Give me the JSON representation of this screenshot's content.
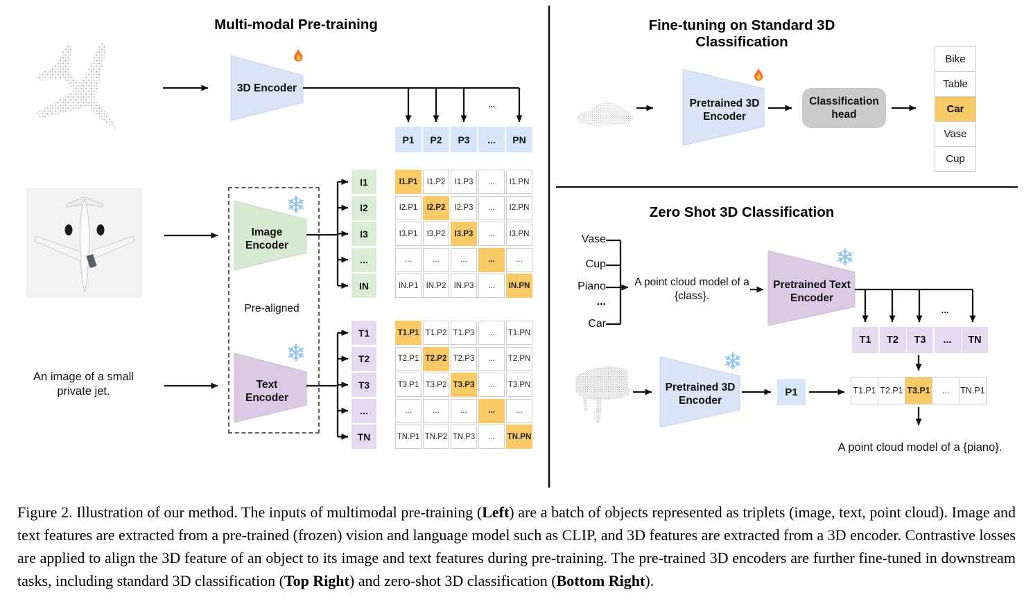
{
  "figure": {
    "left": {
      "title": "Multi-modal Pre-training",
      "encoder3d_label": "3D Encoder",
      "image_encoder_label": "Image Encoder",
      "text_encoder_label": "Text Encoder",
      "pre_aligned": "Pre-aligned",
      "input_text": "An image of a small private jet.",
      "ellipsis": "...",
      "p_row": [
        "P1",
        "P2",
        "P3",
        "...",
        "PN"
      ],
      "i_col": [
        "I1",
        "I2",
        "I3",
        "...",
        "IN"
      ],
      "t_col": [
        "T1",
        "T2",
        "T3",
        "...",
        "TN"
      ],
      "i_matrix": [
        [
          "I1.P1",
          "I1.P2",
          "I1.P3",
          "...",
          "I1.PN"
        ],
        [
          "I2.P1",
          "I2.P2",
          "I2.P3",
          "...",
          "I2.PN"
        ],
        [
          "I3.P1",
          "I3.P2",
          "I3.P3",
          "...",
          "I3.PN"
        ],
        [
          "...",
          "...",
          "...",
          "...",
          "..."
        ],
        [
          "IN.P1",
          "IN.P2",
          "IN.P3",
          "...",
          "IN.PN"
        ]
      ],
      "t_matrix": [
        [
          "T1.P1",
          "T1.P2",
          "T1.P3",
          "...",
          "T1.PN"
        ],
        [
          "T2.P1",
          "T2.P2",
          "T2.P3",
          "...",
          "T2.PN"
        ],
        [
          "T3.P1",
          "T3.P2",
          "T3.P3",
          "...",
          "T3.PN"
        ],
        [
          "...",
          "...",
          "...",
          "...",
          "..."
        ],
        [
          "TN.P1",
          "TN.P2",
          "TN.P3",
          "...",
          "TN.PN"
        ]
      ]
    },
    "top_right": {
      "title": "Fine-tuning on Standard 3D Classification",
      "encoder_label": "Pretrained 3D Encoder",
      "head_label": "Classification head",
      "classes": [
        "Bike",
        "Table",
        "Car",
        "Vase",
        "Cup"
      ],
      "highlight_index": 2
    },
    "bottom_right": {
      "title": "Zero Shot 3D Classification",
      "prompt_classes": [
        "Vase",
        "Cup",
        "Piano",
        "...",
        "Car"
      ],
      "prompt": "A point cloud model of a {class}.",
      "text_encoder_label": "Pretrained Text Encoder",
      "encoder3d_label": "Pretrained 3D Encoder",
      "t_row": [
        "T1",
        "T2",
        "T3",
        "...",
        "TN"
      ],
      "p_cell": "P1",
      "sim_row": [
        "T1.P1",
        "T2.P1",
        "T3.P1",
        "...",
        "TN.P1"
      ],
      "sim_highlight_index": 2,
      "result": "A point cloud model of a {piano}.",
      "ellipsis": "..."
    }
  },
  "icons": {
    "trainable": "fire-icon",
    "frozen": "snowflake-icon"
  },
  "caption_segments": [
    {
      "text": "Figure 2. Illustration of our method. The inputs of multimodal pre-training (",
      "bold": false
    },
    {
      "text": "Left",
      "bold": true
    },
    {
      "text": ") are a batch of objects represented as triplets (image, text, point cloud). Image and text features are extracted from a pre-trained (frozen) vision and language model such as CLIP, and 3D features are extracted from a 3D encoder. Contrastive losses are applied to align the 3D feature of an object to its image and text features during pre-training. The pre-trained 3D encoders are further fine-tuned in downstream tasks, including standard 3D classification (",
      "bold": false
    },
    {
      "text": "Top Right",
      "bold": true
    },
    {
      "text": ") and zero-shot 3D classification (",
      "bold": false
    },
    {
      "text": "Bottom Right",
      "bold": true
    },
    {
      "text": ").",
      "bold": false
    }
  ],
  "colors": {
    "blue_cell": "#D8E4F8",
    "blue_trap": "#DAE4F6",
    "green_trap": "#D7E9D0",
    "green_cell": "#DAEBD6",
    "purple_trap": "#DCC9E4",
    "purple_cell": "#E5DAEF",
    "orange": "#F8C967",
    "head_gray": "#CBCBCB",
    "border_gray": "#CBCBCB"
  }
}
